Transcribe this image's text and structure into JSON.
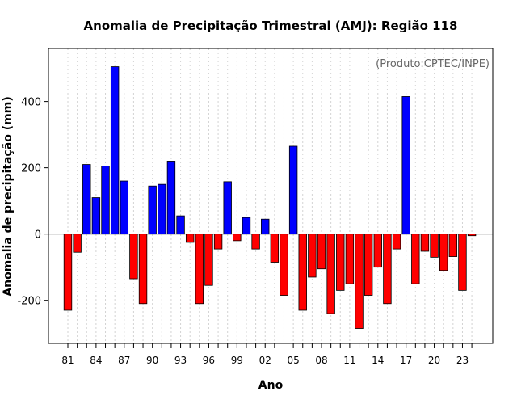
{
  "chart_data": {
    "type": "bar",
    "title": "Anomalia de Precipitação Trimestral (AMJ): Região 118",
    "xlabel": "Ano",
    "ylabel": "Anomalia de precipitação (mm)",
    "annotation": "(Produto:CPTEC/INPE)",
    "ylim": [
      -330,
      560
    ],
    "yticks": [
      -200,
      0,
      200,
      400
    ],
    "ytick_labels": [
      "-200",
      "0",
      "200",
      "400"
    ],
    "grid": true,
    "categories": [
      "1981",
      "1982",
      "1983",
      "1984",
      "1985",
      "1986",
      "1987",
      "1988",
      "1989",
      "1990",
      "1991",
      "1992",
      "1993",
      "1994",
      "1995",
      "1996",
      "1997",
      "1998",
      "1999",
      "2000",
      "2001",
      "2002",
      "2003",
      "2004",
      "2005",
      "2006",
      "2007",
      "2008",
      "2009",
      "2010",
      "2011",
      "2012",
      "2013",
      "2014",
      "2015",
      "2016",
      "2017",
      "2018",
      "2019",
      "2020",
      "2021",
      "2022",
      "2023",
      "2024"
    ],
    "xtick_labels": [
      "81",
      "84",
      "87",
      "90",
      "93",
      "96",
      "99",
      "02",
      "05",
      "08",
      "11",
      "14",
      "17",
      "20",
      "23"
    ],
    "xtick_indices": [
      0,
      3,
      6,
      9,
      12,
      15,
      18,
      21,
      24,
      27,
      30,
      33,
      36,
      39,
      42
    ],
    "values": [
      -230,
      -55,
      210,
      110,
      205,
      505,
      160,
      -135,
      -210,
      145,
      150,
      220,
      55,
      -25,
      -210,
      -155,
      -45,
      158,
      -20,
      50,
      -45,
      45,
      -85,
      -185,
      265,
      -230,
      -130,
      -105,
      -240,
      -170,
      -150,
      -285,
      -185,
      -100,
      -210,
      -45,
      415,
      -150,
      -52,
      -70,
      -110,
      -68,
      -170,
      -5
    ],
    "colors": {
      "positive": "#0000ff",
      "negative": "#ff0000",
      "axis": "#000000",
      "grid": "#d3d3d3",
      "annotation": "#666666"
    }
  }
}
